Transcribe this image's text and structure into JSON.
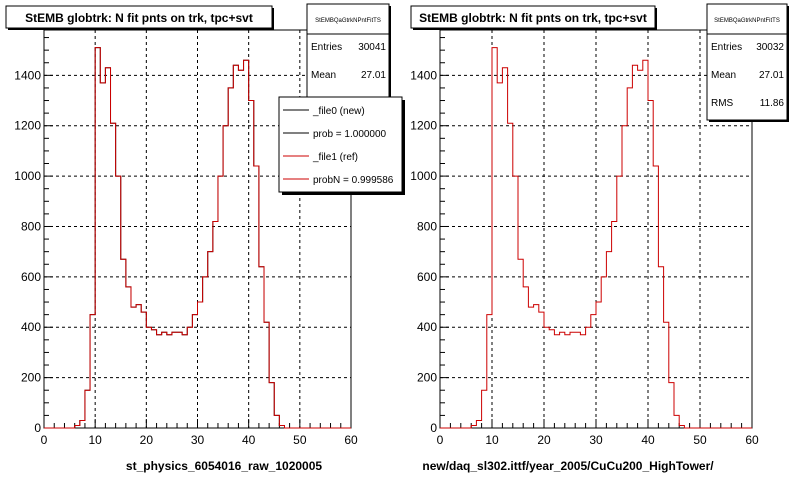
{
  "footer_text": "",
  "chart_data": [
    {
      "type": "step",
      "title": "StEMB globtrk: N fit pnts on trk, tpc+svt",
      "xlabel": "st_physics_6054016_raw_1020005",
      "ylabel": "",
      "xlim": [
        0,
        60
      ],
      "ylim": [
        0,
        1580
      ],
      "xticks": [
        "0",
        "10",
        "20",
        "30",
        "40",
        "50",
        "60"
      ],
      "yticks": [
        "0",
        "200",
        "400",
        "600",
        "800",
        "1000",
        "1200",
        "1400"
      ],
      "grid": true,
      "stats": {
        "title": "StEMBQaGtrkNPntFitTS",
        "rows": [
          {
            "label": "Entries",
            "value": "30041"
          },
          {
            "label": "Mean",
            "value": "27.01"
          }
        ]
      },
      "legend": {
        "placement": "top-right",
        "entries": [
          {
            "label": "_file0 (new)",
            "color": "#000000"
          },
          {
            "label": "prob = 1.000000",
            "color": "#000000"
          },
          {
            "label": "_file1 (ref)",
            "color": "#cc0000"
          },
          {
            "label": "probN = 0.999586",
            "color": "#cc0000"
          }
        ]
      },
      "series": [
        {
          "color": "#000000",
          "bin_width": 1,
          "x_start": 0,
          "values": [
            0,
            0,
            0,
            0,
            0,
            0,
            10,
            30,
            150,
            450,
            1510,
            1370,
            1430,
            1210,
            1000,
            670,
            560,
            480,
            490,
            460,
            400,
            390,
            370,
            380,
            370,
            380,
            380,
            370,
            400,
            450,
            500,
            600,
            700,
            820,
            1000,
            1200,
            1350,
            1440,
            1420,
            1460,
            1300,
            1040,
            640,
            420,
            180,
            50,
            10,
            0,
            0,
            0,
            0,
            0,
            0,
            0,
            0,
            0,
            0,
            0,
            0,
            0
          ]
        },
        {
          "color": "#cc0000",
          "bin_width": 1,
          "x_start": 0,
          "values": [
            0,
            0,
            0,
            0,
            0,
            0,
            10,
            30,
            150,
            450,
            1510,
            1370,
            1430,
            1210,
            1000,
            670,
            560,
            480,
            490,
            460,
            400,
            390,
            370,
            380,
            370,
            380,
            380,
            370,
            400,
            450,
            500,
            600,
            700,
            820,
            1000,
            1200,
            1350,
            1440,
            1420,
            1460,
            1300,
            1040,
            640,
            420,
            180,
            50,
            10,
            0,
            0,
            0,
            0,
            0,
            0,
            0,
            0,
            0,
            0,
            0,
            0,
            0
          ]
        }
      ]
    },
    {
      "type": "step",
      "title": "StEMB globtrk: N fit pnts on trk, tpc+svt",
      "xlabel": "new/daq_sl302.ittf/year_2005/CuCu200_HighTower/",
      "ylabel": "",
      "xlim": [
        0,
        60
      ],
      "ylim": [
        0,
        1580
      ],
      "xticks": [
        "0",
        "10",
        "20",
        "30",
        "40",
        "50",
        "60"
      ],
      "yticks": [
        "0",
        "200",
        "400",
        "600",
        "800",
        "1000",
        "1200",
        "1400"
      ],
      "grid": true,
      "stats": {
        "title": "StEMBQaGtrkNPntFitTS",
        "rows": [
          {
            "label": "Entries",
            "value": "30032"
          },
          {
            "label": "Mean",
            "value": "27.01"
          },
          {
            "label": "RMS",
            "value": "11.86"
          }
        ]
      },
      "series": [
        {
          "color": "#cc0000",
          "bin_width": 1,
          "x_start": 0,
          "values": [
            0,
            0,
            0,
            0,
            0,
            0,
            10,
            30,
            150,
            450,
            1510,
            1370,
            1430,
            1210,
            1000,
            670,
            560,
            480,
            490,
            460,
            400,
            390,
            370,
            380,
            370,
            380,
            380,
            370,
            400,
            450,
            500,
            600,
            700,
            820,
            1000,
            1200,
            1350,
            1440,
            1420,
            1460,
            1300,
            1040,
            640,
            420,
            180,
            50,
            10,
            0,
            0,
            0,
            0,
            0,
            0,
            0,
            0,
            0,
            0,
            0,
            0,
            0
          ]
        }
      ]
    }
  ]
}
